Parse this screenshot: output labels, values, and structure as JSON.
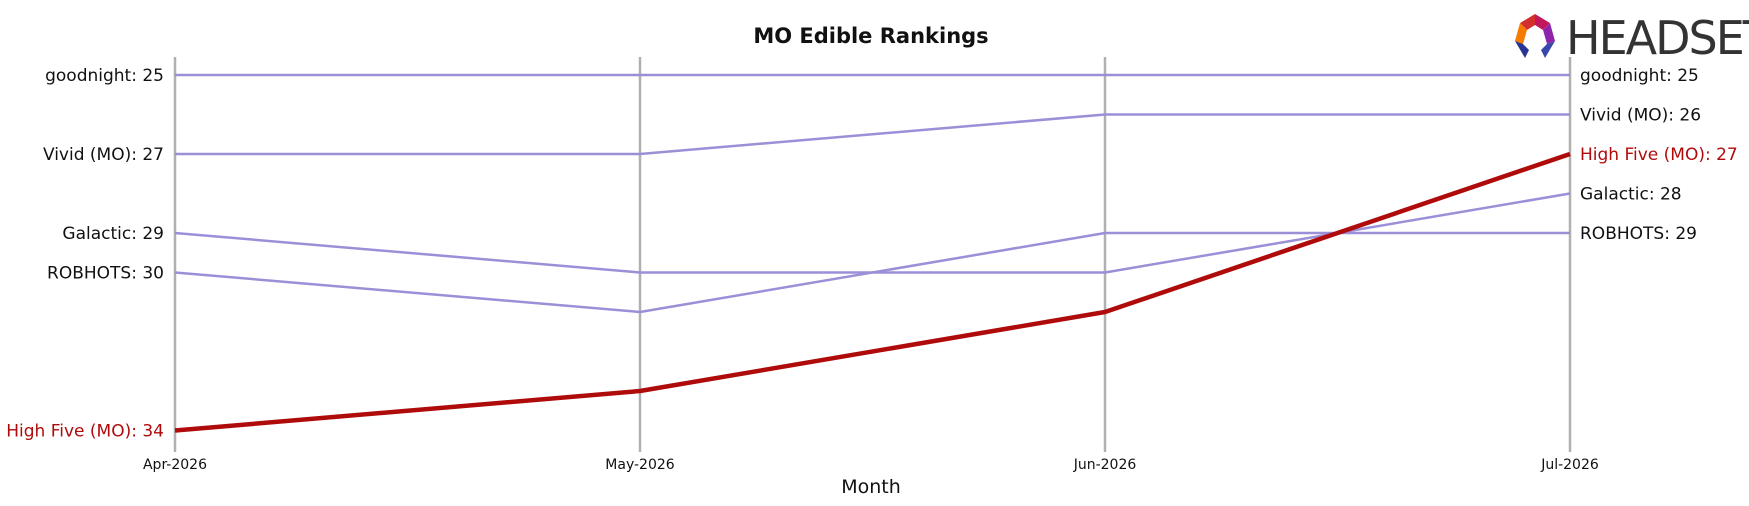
{
  "chart_data": {
    "type": "line",
    "title": "MO Edible Rankings",
    "xlabel": "Month",
    "ylabel": "",
    "x": [
      "Apr-2026",
      "May-2026",
      "Jun-2026",
      "Jul-2026"
    ],
    "y_inverted": true,
    "ylim": [
      24.5,
      34
    ],
    "grid": "vertical lines at each month",
    "series": [
      {
        "name": "goodnight",
        "values": [
          25,
          25,
          25,
          25
        ],
        "color": "#9b8fd8",
        "highlight": false,
        "left_label": "goodnight: 25",
        "right_label": "goodnight: 25"
      },
      {
        "name": "Vivid (MO)",
        "values": [
          27,
          27,
          26,
          26
        ],
        "color": "#9b8fd8",
        "highlight": false,
        "left_label": "Vivid (MO): 27",
        "right_label": "Vivid (MO): 26"
      },
      {
        "name": "Galactic",
        "values": [
          29,
          30,
          30,
          28
        ],
        "color": "#9b8fd8",
        "highlight": false,
        "left_label": "Galactic: 29",
        "right_label": "Galactic: 28"
      },
      {
        "name": "ROBHOTS",
        "values": [
          30,
          31,
          29,
          29
        ],
        "color": "#9b8fd8",
        "highlight": false,
        "left_label": "ROBHOTS: 30",
        "right_label": "ROBHOTS: 29"
      },
      {
        "name": "High Five (MO)",
        "values": [
          34,
          33,
          31,
          27
        ],
        "color": "#b00b0b",
        "highlight": true,
        "left_label": "High Five (MO): 34",
        "right_label": "High Five (MO): 27"
      }
    ]
  },
  "logo": {
    "text": "HEADSET"
  },
  "colors": {
    "highlight": "#b00b0b",
    "other": "#9b8fd8",
    "vline": "#b0b0b0",
    "text": "#111111"
  }
}
